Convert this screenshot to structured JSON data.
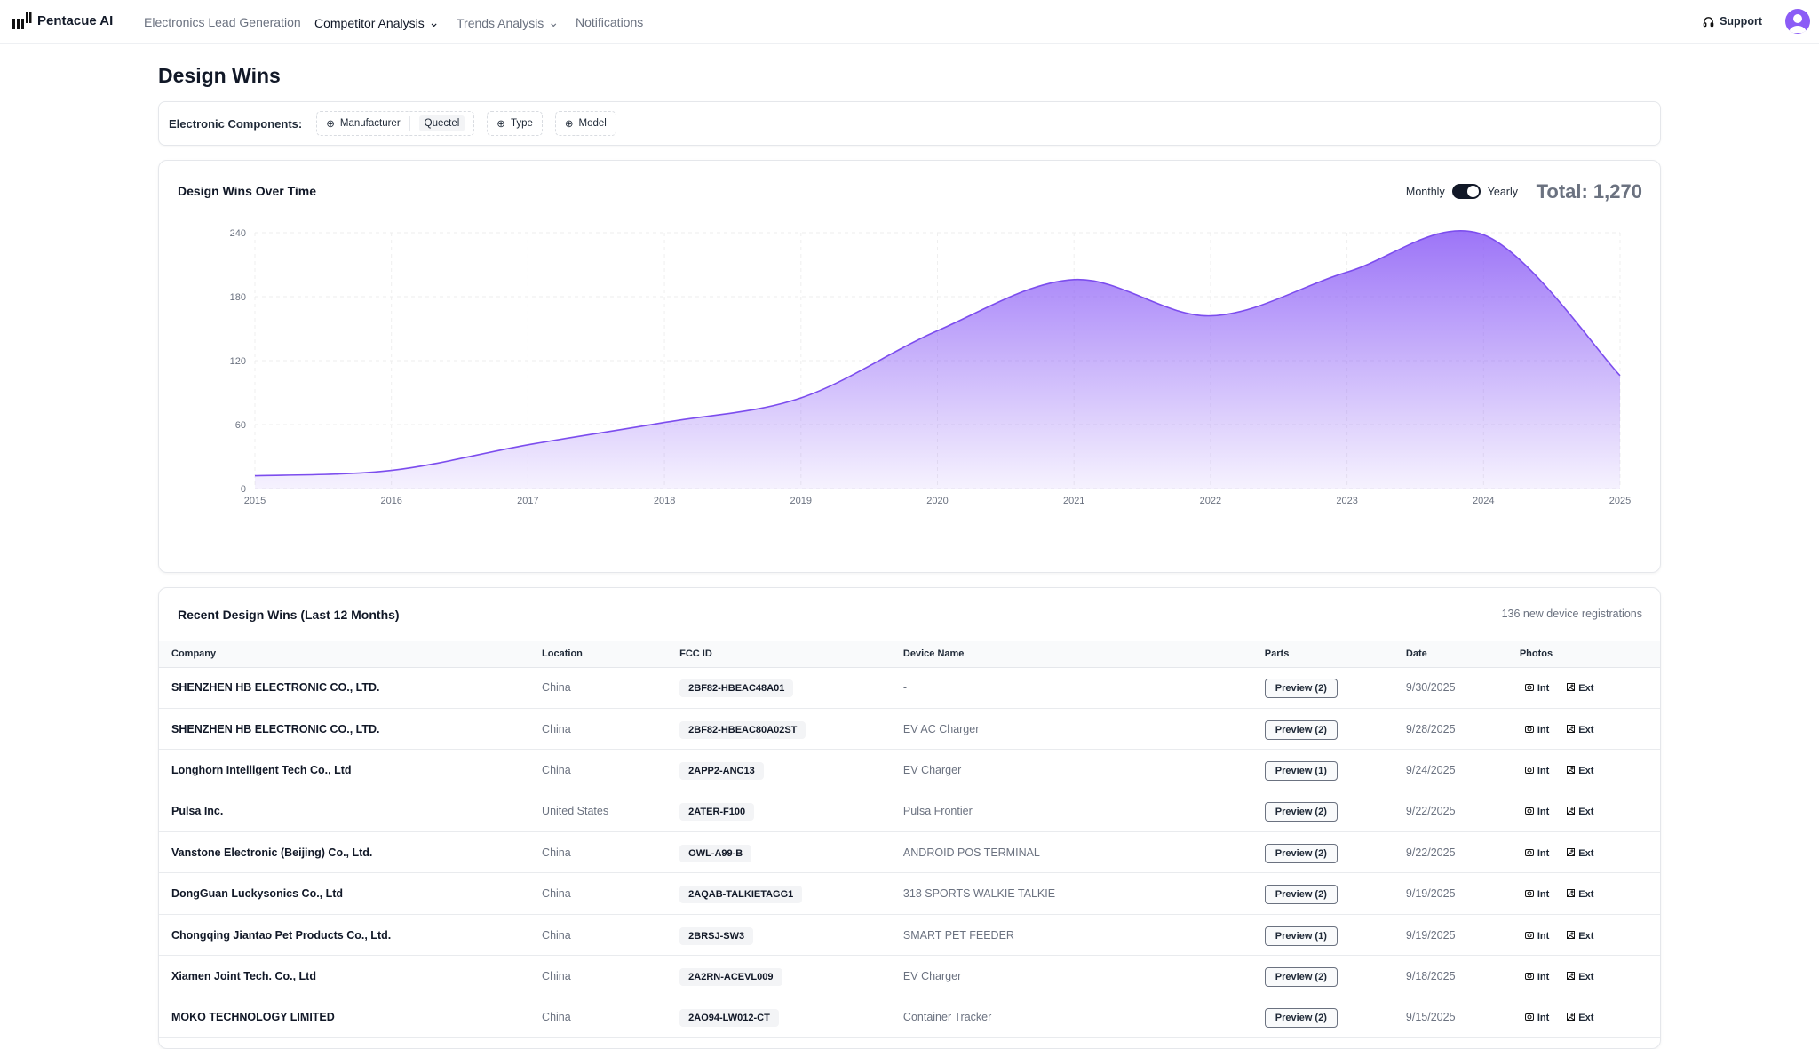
{
  "nav": {
    "brand": "Pentacue AI",
    "items": [
      {
        "label": "Electronics Lead Generation"
      },
      {
        "label": "Competitor Analysis"
      },
      {
        "label": "Trends Analysis"
      },
      {
        "label": "Notifications"
      }
    ],
    "support": "Support"
  },
  "page": {
    "title": "Design Wins"
  },
  "filters": {
    "label": "Electronic Components:",
    "manufacturer": "Manufacturer",
    "manufacturer_value": "Quectel",
    "type": "Type",
    "model": "Model"
  },
  "chart_card": {
    "title": "Design Wins Over Time",
    "monthly": "Monthly",
    "yearly": "Yearly",
    "toggle_state": "Yearly",
    "total": "Total: 1,270"
  },
  "chart_data": {
    "type": "area",
    "x": [
      "2015",
      "2016",
      "2017",
      "2018",
      "2019",
      "2020",
      "2021",
      "2022",
      "2023",
      "2024",
      "2025"
    ],
    "values": [
      12,
      17,
      41,
      62,
      85,
      148,
      196,
      162,
      203,
      238,
      106
    ],
    "yticks": [
      "0",
      "60",
      "120",
      "180",
      "240"
    ],
    "ylim": [
      0,
      240
    ],
    "grid": true,
    "color": "#8b5cf6"
  },
  "table": {
    "title": "Recent Design Wins (Last 12 Months)",
    "subtitle": "136 new device registrations",
    "columns": [
      "Company",
      "Location",
      "FCC ID",
      "Device Name",
      "Parts",
      "Date",
      "Photos"
    ],
    "photo_int": "Int",
    "photo_ext": "Ext",
    "rows": [
      {
        "company": "SHENZHEN HB ELECTRONIC CO., LTD.",
        "location": "China",
        "fcc": "2BF82-HBEAC48A01",
        "device": "-",
        "parts": "Preview (2)",
        "date": "9/30/2025"
      },
      {
        "company": "SHENZHEN HB ELECTRONIC CO., LTD.",
        "location": "China",
        "fcc": "2BF82-HBEAC80A02ST",
        "device": "EV AC Charger",
        "parts": "Preview (2)",
        "date": "9/28/2025"
      },
      {
        "company": "Longhorn Intelligent Tech Co., Ltd",
        "location": "China",
        "fcc": "2APP2-ANC13",
        "device": "EV Charger",
        "parts": "Preview (1)",
        "date": "9/24/2025"
      },
      {
        "company": "Pulsa Inc.",
        "location": "United States",
        "fcc": "2ATER-F100",
        "device": "Pulsa Frontier",
        "parts": "Preview (2)",
        "date": "9/22/2025"
      },
      {
        "company": "Vanstone Electronic (Beijing) Co., Ltd.",
        "location": "China",
        "fcc": "OWL-A99-B",
        "device": "ANDROID POS TERMINAL",
        "parts": "Preview (2)",
        "date": "9/22/2025"
      },
      {
        "company": "DongGuan Luckysonics Co., Ltd",
        "location": "China",
        "fcc": "2AQAB-TALKIETAGG1",
        "device": "318 SPORTS WALKIE TALKIE",
        "parts": "Preview (2)",
        "date": "9/19/2025"
      },
      {
        "company": "Chongqing Jiantao Pet Products Co., Ltd.",
        "location": "China",
        "fcc": "2BRSJ-SW3",
        "device": "SMART PET FEEDER",
        "parts": "Preview (1)",
        "date": "9/19/2025"
      },
      {
        "company": "Xiamen Joint Tech. Co., Ltd",
        "location": "China",
        "fcc": "2A2RN-ACEVL009",
        "device": "EV Charger",
        "parts": "Preview (2)",
        "date": "9/18/2025"
      },
      {
        "company": "MOKO TECHNOLOGY LIMITED",
        "location": "China",
        "fcc": "2AO94-LW012-CT",
        "device": "Container Tracker",
        "parts": "Preview (2)",
        "date": "9/15/2025"
      }
    ]
  }
}
